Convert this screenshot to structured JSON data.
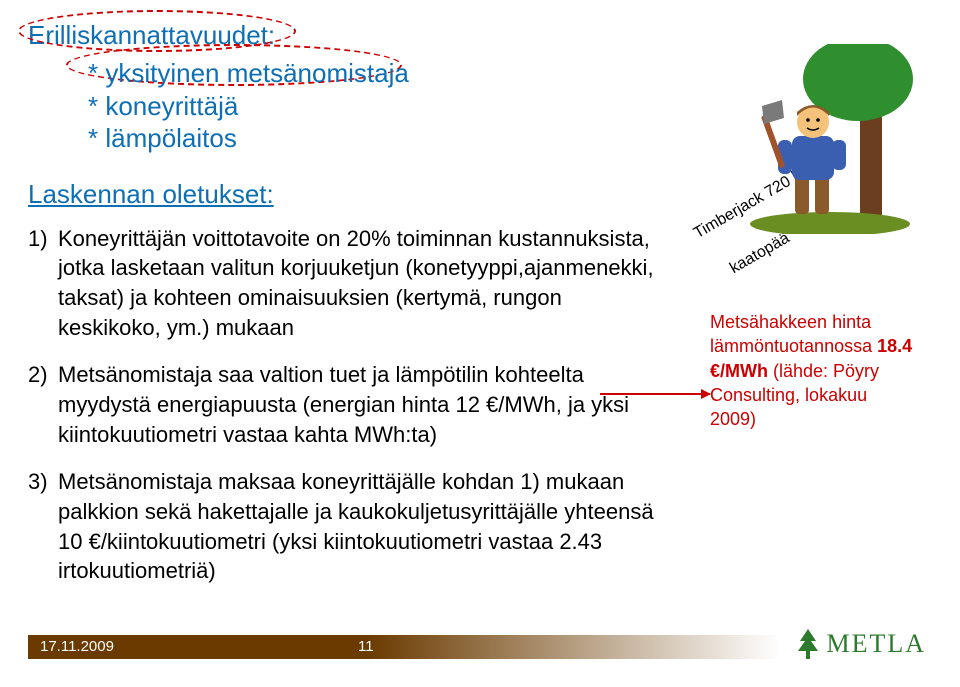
{
  "colors": {
    "accent_blue": "#0f6fb5",
    "accent_red": "#cc0000",
    "text_black": "#000000",
    "footer_grad_start": "#6a3a00",
    "footer_grad_end": "#ffffff",
    "logo_green": "#2d7a2d",
    "tree_crown": "#2f8f2f",
    "tree_trunk": "#6b3e1f",
    "ground": "#6b8e23",
    "skin": "#f4c27a",
    "shirt": "#3a5fb0",
    "pants": "#8a5a2a",
    "axe_handle": "#a0522d",
    "axe_head": "#7a7a7a"
  },
  "header": {
    "title": "Erilliskannattavuudet:",
    "bullets": [
      "yksityinen metsänomistaja",
      "koneyrittäjä",
      "lämpölaitos"
    ]
  },
  "circle1_color": "#cc0000",
  "circle2_color": "#cc0000",
  "subheading": "Laskennan oletukset:",
  "items": [
    {
      "num": "1)",
      "text": "Koneyrittäjän voittotavoite on 20% toiminnan kustannuksista, jotka lasketaan valitun korjuuketjun (konetyyppi,ajanmenekki, taksat) ja kohteen ominaisuuksien (kertymä, rungon keskikoko, ym.) mukaan"
    },
    {
      "num": "2)",
      "text": "Metsänomistaja saa valtion tuet ja lämpötilin kohteelta myydystä energiapuusta (energian hinta 12 €/MWh, ja yksi kiintokuutiometri vastaa kahta MWh:ta)"
    },
    {
      "num": "3)",
      "text": "Metsänomistaja maksaa koneyrittäjälle kohdan 1) mukaan palkkion sekä hakettajalle ja kaukokuljetusyrittäjälle yhteensä 10 €/kiintokuutiometri (yksi kiintokuutiometri vastaa 2.43 irtokuutiometriä)"
    }
  ],
  "diag_lines": {
    "line1": "Timberjack 720 keräävä",
    "line2": "kaatopää"
  },
  "side_note": {
    "l1": "Metsähakkeen hinta",
    "l2_a": "lämmöntuotannossa ",
    "l2_b": "18.4",
    "l3_a": "€/MWh ",
    "l3_b": "(lähde: Pöyry",
    "l4": "Consulting, lokakuu",
    "l5": "2009)"
  },
  "arrow_color": "#cc0000",
  "footer": {
    "date": "17.11.2009",
    "page": "11",
    "logo_text": "METLA"
  }
}
